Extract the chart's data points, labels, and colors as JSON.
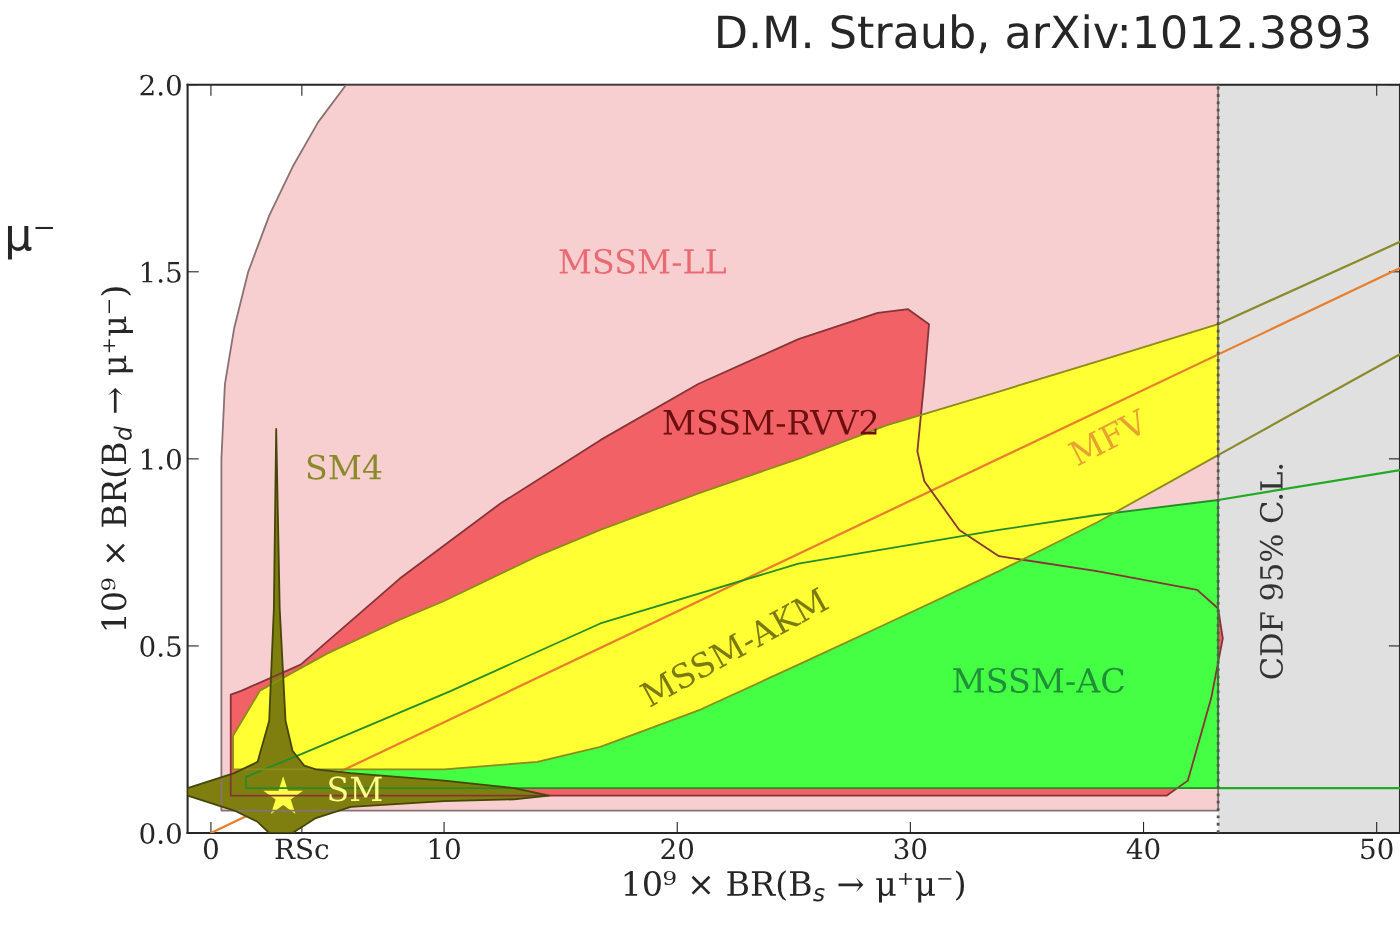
{
  "chart_data": {
    "type": "area",
    "xlabel": "10⁹ × BR(B$_{s}$ → μ⁺μ⁻)",
    "ylabel": "10⁹ × BR(B$_{d}$ → μ⁺μ⁻)",
    "xlim": [
      -1,
      51
    ],
    "ylim": [
      0,
      2
    ],
    "xticks": [
      0,
      {
        "value": 3.9,
        "label": "RSc"
      },
      10,
      20,
      30,
      40,
      50
    ],
    "yticks": [
      {
        "value": 0,
        "label": "0.0"
      },
      0.5,
      {
        "value": 1,
        "label": "1.0"
      },
      1.5,
      {
        "value": 2,
        "label": "2.0"
      }
    ],
    "grid": false,
    "series": [
      {
        "color": "#f8cfd0",
        "x": [
          0.45,
          0.6,
          1.0,
          1.6,
          2.5,
          3.5,
          4.6,
          5.8,
          43.2,
          43.2,
          0.45
        ],
        "values": [
          1.0,
          1.2,
          1.35,
          1.5,
          1.65,
          1.78,
          1.9,
          2.0,
          2.0,
          0.06,
          0.06
        ]
      },
      {
        "color": "#f26166",
        "x": [
          0.85,
          1.3,
          3.85,
          8.1,
          12.4,
          16.7,
          20.9,
          25.2,
          28.6,
          29.9,
          30.8,
          30.6,
          30.3,
          30.6,
          32.1,
          33.8,
          38.0,
          42.3,
          43.2,
          43.4,
          42.9,
          41.9,
          41.0,
          0.85
        ],
        "values": [
          0.37,
          0.38,
          0.45,
          0.68,
          0.88,
          1.05,
          1.2,
          1.32,
          1.39,
          1.4,
          1.36,
          1.21,
          1.02,
          0.94,
          0.81,
          0.74,
          0.7,
          0.65,
          0.6,
          0.52,
          0.36,
          0.14,
          0.1,
          0.1
        ]
      },
      {
        "color": "#44ff44",
        "x": [
          1.5,
          3.85,
          10.3,
          16.7,
          25.2,
          33.8,
          38.0,
          43.2,
          43.2,
          1.5
        ],
        "values": [
          0.15,
          0.21,
          0.38,
          0.56,
          0.72,
          0.81,
          0.85,
          0.89,
          0.12,
          0.12
        ]
      },
      {
        "color": "#ffff33",
        "x": [
          0.95,
          2.1,
          5,
          8.1,
          10,
          14,
          16.7,
          21,
          25.2,
          29,
          33.8,
          38,
          43.2,
          43.2,
          38,
          33.8,
          29,
          25.2,
          21,
          16.7,
          14,
          10,
          5,
          0.95
        ],
        "values": [
          0.26,
          0.38,
          0.48,
          0.57,
          0.62,
          0.74,
          0.81,
          0.91,
          1.0,
          1.09,
          1.18,
          1.26,
          1.36,
          1.01,
          0.83,
          0.7,
          0.56,
          0.45,
          0.33,
          0.23,
          0.19,
          0.17,
          0.17,
          0.17
        ]
      },
      {
        "type": "line",
        "color": "#8a8a2a",
        "x": [
          43.2,
          51
        ],
        "values": [
          1.36,
          1.58
        ]
      },
      {
        "type": "line",
        "color": "#8a8a2a",
        "x": [
          43.2,
          51
        ],
        "values": [
          1.01,
          1.28
        ]
      },
      {
        "type": "line",
        "color": "#22aa22",
        "x": [
          43.2,
          51
        ],
        "values": [
          0.89,
          0.97
        ]
      },
      {
        "type": "line",
        "color": "#22aa22",
        "x": [
          43.2,
          51
        ],
        "values": [
          0.12,
          0.12
        ]
      },
      {
        "type": "line",
        "color": "#e87d2c",
        "x": [
          0,
          51
        ],
        "values": [
          0,
          1.51
        ]
      },
      {
        "color": "#7f7f10",
        "x": [
          -1,
          0,
          1,
          2,
          2.5,
          2.7,
          2.8,
          2.95,
          3.2,
          3.5,
          4,
          4.5,
          6,
          10,
          13,
          14.5,
          13,
          10,
          6,
          4.5,
          4,
          3.5,
          2.5,
          2,
          1,
          0,
          -1
        ],
        "values": [
          0.12,
          0.14,
          0.16,
          0.19,
          0.3,
          0.6,
          1.08,
          0.6,
          0.3,
          0.22,
          0.18,
          0.17,
          0.16,
          0.14,
          0.12,
          0.1,
          0.09,
          0.085,
          0.07,
          0.04,
          0.02,
          0.0,
          0.0,
          0.03,
          0.06,
          0.08,
          0.1
        ]
      },
      {
        "type": "scatter",
        "color": "#ffff44",
        "marker": "star",
        "x": [
          3.1
        ],
        "values": [
          0.096
        ]
      }
    ],
    "bands": [
      {
        "axis": "x",
        "from": 43.2,
        "to": 51,
        "label": "CDF 95% C.L.",
        "color": "#e0e0e0"
      }
    ],
    "ref_lines": [
      {
        "axis": "x",
        "value": 43.2,
        "line_style": "dotted",
        "color": "#555555"
      }
    ],
    "annotations": [
      "D.M. Straub, arXiv:1012.3893",
      "μ⁻",
      "MSSM-LL",
      "MSSM-RVV2",
      "SM4",
      "MSSM-AKM",
      "MSSM-AC",
      "MFV",
      "SM"
    ]
  }
}
